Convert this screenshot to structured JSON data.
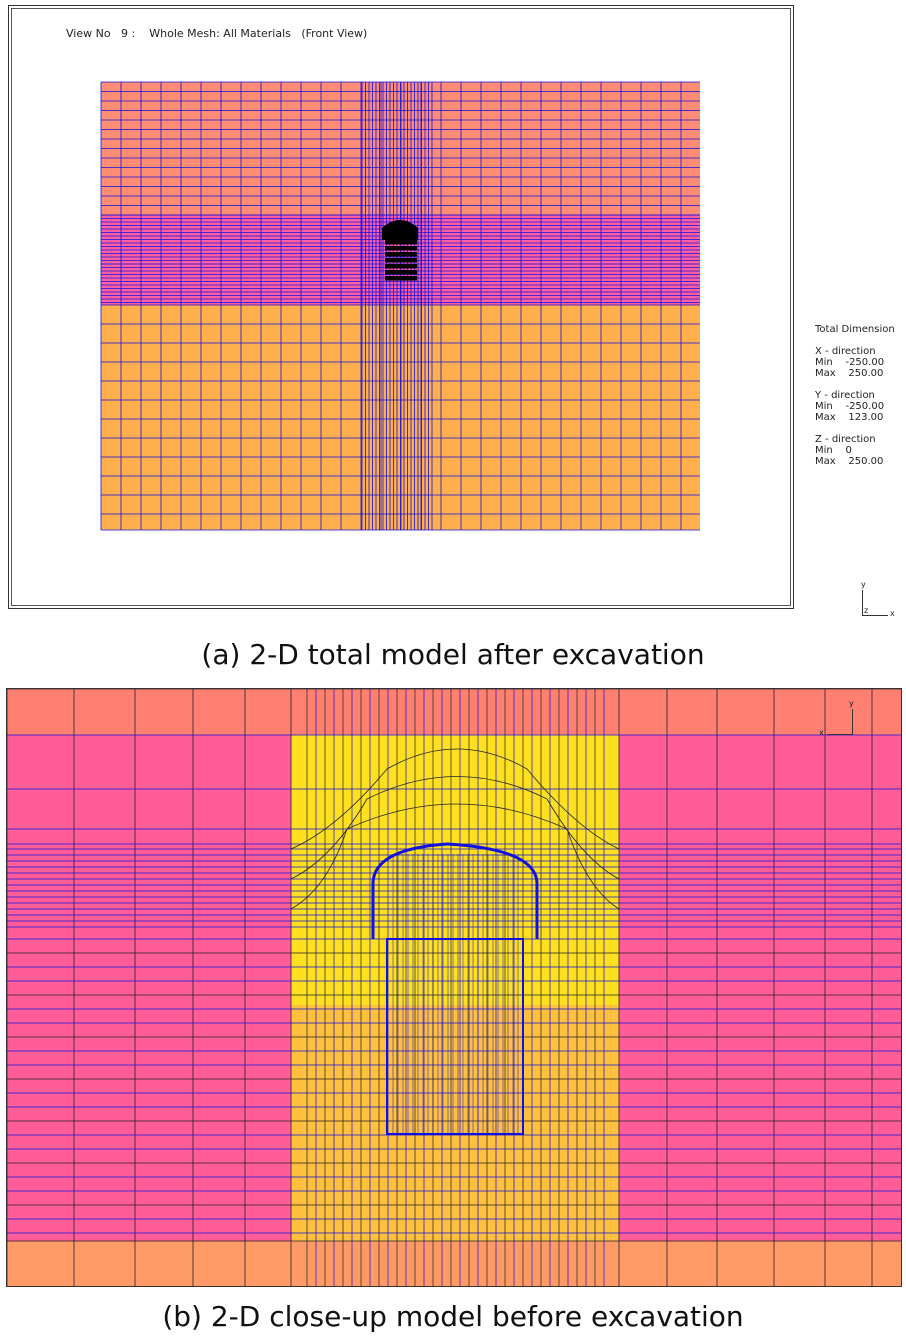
{
  "panel_a": {
    "title": "View No   9 :    Whole Mesh: All Materials   (Front View)",
    "dimension": {
      "heading": "Total Dimension",
      "x_label": "X - direction",
      "x_min": "Min    -250.00",
      "x_max": "Max    250.00",
      "y_label": "Y - direction",
      "y_min": "Min    -250.00",
      "y_max": "Max    123.00",
      "z_label": "Z - direction",
      "z_min": "Min    0",
      "z_max": "Max    250.00"
    },
    "axis_y": "y",
    "axis_z": "z",
    "axis_x": "x",
    "caption": "(a) 2-D total model after excavation",
    "colors": {
      "upper": "#FF8C74",
      "band": "#FF5FA0",
      "lower": "#FFB04C",
      "mesh": "#1010E0",
      "excavation": "#000000"
    }
  },
  "panel_b": {
    "axis_y": "y",
    "axis_x": "x",
    "caption": "(b) 2-D close-up model before excavation",
    "colors": {
      "side": "#FF8070",
      "side_band": "#FF5C98",
      "core": "#FFE020",
      "core_lower": "#FFC040",
      "bottom": "#FF9A66",
      "mesh": "#1010E0"
    }
  }
}
